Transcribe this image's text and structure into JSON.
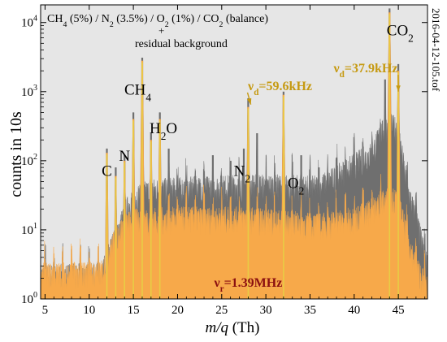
{
  "chart_data": {
    "type": "area",
    "title": "CH4 (5%) / N2 (3.5%) / O2 (1%) / CO2 (balance) + residual background",
    "title_parts": {
      "line1": [
        {
          "t": "CH"
        },
        {
          "t": "4",
          "sub": true
        },
        {
          "t": " (5%) / N"
        },
        {
          "t": "2",
          "sub": true
        },
        {
          "t": " (3.5%) / O"
        },
        {
          "t": "2",
          "sub": true
        },
        {
          "t": " (1%) / CO"
        },
        {
          "t": "2",
          "sub": true
        },
        {
          "t": " (balance)"
        }
      ],
      "plus": "+",
      "line2": "residual background"
    },
    "xlabel": "m/q (Th)",
    "xlabel_parts": {
      "italic": "m/q",
      "normal": " (Th)"
    },
    "ylabel": "counts in 10s",
    "xlim": [
      4.5,
      48.3
    ],
    "ylim": [
      1,
      18000
    ],
    "yscale": "log",
    "grid": false,
    "x_ticks": [
      5,
      10,
      15,
      20,
      25,
      30,
      35,
      40,
      45
    ],
    "y_ticks": [
      {
        "value": 1,
        "base": "10",
        "exp": "0"
      },
      {
        "value": 10,
        "base": "10",
        "exp": "1"
      },
      {
        "value": 100,
        "base": "10",
        "exp": "2"
      },
      {
        "value": 1000,
        "base": "10",
        "exp": "3"
      },
      {
        "value": 10000,
        "base": "10",
        "exp": "4"
      }
    ],
    "file_label": "2016-04-12-105.tof",
    "colors": {
      "background": "#e6e6e6",
      "gray_series": "#6f6f6f",
      "orange_series": "#f7a94a",
      "yellow_peaks": "#e8cc45",
      "annotation_gold": "#c69a12",
      "annotation_red": "#8b1010"
    },
    "series": [
      {
        "name": "",
        "color": "#6f6f6f",
        "baseline": [
          [
            4.5,
            2.2
          ],
          [
            11.5,
            2.3
          ],
          [
            12,
            4
          ],
          [
            13,
            8
          ],
          [
            14,
            18
          ],
          [
            15,
            30
          ],
          [
            17,
            38
          ],
          [
            20,
            40
          ],
          [
            24,
            42
          ],
          [
            28,
            45
          ],
          [
            32,
            44
          ],
          [
            36,
            42
          ],
          [
            38,
            60
          ],
          [
            40,
            90
          ],
          [
            42,
            130
          ],
          [
            43,
            250
          ],
          [
            44,
            350
          ],
          [
            45,
            280
          ],
          [
            46,
            40
          ],
          [
            47,
            15
          ],
          [
            48.3,
            3
          ]
        ],
        "peaks": [
          [
            12,
            150
          ],
          [
            13,
            80
          ],
          [
            14,
            120
          ],
          [
            15,
            500
          ],
          [
            16,
            3100
          ],
          [
            17,
            250
          ],
          [
            18,
            500
          ],
          [
            19,
            150
          ],
          [
            22,
            60
          ],
          [
            24,
            120
          ],
          [
            26,
            100
          ],
          [
            27.5,
            150
          ],
          [
            28,
            800
          ],
          [
            29,
            250
          ],
          [
            32,
            1000
          ],
          [
            34,
            120
          ],
          [
            36,
            80
          ],
          [
            38,
            110
          ],
          [
            40,
            100
          ],
          [
            43.5,
            1500
          ],
          [
            44,
            16000
          ],
          [
            45,
            2500
          ],
          [
            46,
            40
          ]
        ]
      },
      {
        "name": "",
        "color": "#f7a94a",
        "baseline": [
          [
            4.5,
            2.3
          ],
          [
            11.5,
            2.5
          ],
          [
            12,
            4
          ],
          [
            13,
            8
          ],
          [
            14,
            12
          ],
          [
            15,
            14
          ],
          [
            20,
            15
          ],
          [
            28,
            15
          ],
          [
            30,
            14
          ],
          [
            36,
            12
          ],
          [
            40,
            15
          ],
          [
            42,
            20
          ],
          [
            44,
            30
          ],
          [
            45,
            25
          ],
          [
            46,
            8
          ],
          [
            47,
            3
          ],
          [
            48.3,
            1.5
          ]
        ],
        "peaks": [
          [
            12,
            130
          ],
          [
            13,
            60
          ],
          [
            14,
            100
          ],
          [
            15,
            400
          ],
          [
            16,
            2800
          ],
          [
            17,
            200
          ],
          [
            18,
            400
          ],
          [
            28,
            600
          ],
          [
            32,
            900
          ],
          [
            44,
            14000
          ],
          [
            45,
            2000
          ]
        ]
      }
    ],
    "peak_labels": [
      {
        "x": 12,
        "y": 60,
        "parts": [
          {
            "t": "C"
          }
        ]
      },
      {
        "x": 14,
        "y": 100,
        "parts": [
          {
            "t": "N"
          }
        ]
      },
      {
        "x": 15.5,
        "y": 900,
        "parts": [
          {
            "t": "CH"
          },
          {
            "t": "4",
            "sub": true
          }
        ]
      },
      {
        "x": 18.4,
        "y": 250,
        "parts": [
          {
            "t": "H"
          },
          {
            "t": "2",
            "sub": true
          },
          {
            "t": "O"
          }
        ]
      },
      {
        "x": 27.3,
        "y": 60,
        "parts": [
          {
            "t": "N"
          },
          {
            "t": "2",
            "sub": true
          }
        ]
      },
      {
        "x": 33.4,
        "y": 40,
        "parts": [
          {
            "t": "O"
          },
          {
            "t": "2",
            "sub": true
          }
        ]
      },
      {
        "x": 45.2,
        "y": 6500,
        "parts": [
          {
            "t": "CO"
          },
          {
            "t": "2",
            "sub": true
          }
        ]
      }
    ],
    "annotations": [
      {
        "name": "nu-d-59-6",
        "x": 31.6,
        "y": 1050,
        "pointer_to": [
          28.3,
          650
        ],
        "color": "#c69a12",
        "parts": [
          {
            "t": "ν"
          },
          {
            "t": "d",
            "sub": true
          },
          {
            "t": "=59.6kHz"
          }
        ]
      },
      {
        "name": "nu-d-37-9",
        "x": 41.3,
        "y": 1900,
        "pointer_to": [
          45,
          1000
        ],
        "color": "#c69a12",
        "parts": [
          {
            "t": "ν"
          },
          {
            "t": "d",
            "sub": true
          },
          {
            "t": "=37.9kHz"
          }
        ]
      },
      {
        "name": "nu-r-1-39",
        "x": 28,
        "y": 1.5,
        "color": "#8b1010",
        "parts": [
          {
            "t": "ν"
          },
          {
            "t": "r",
            "sub": true
          },
          {
            "t": "=1.39MHz"
          }
        ]
      }
    ]
  }
}
